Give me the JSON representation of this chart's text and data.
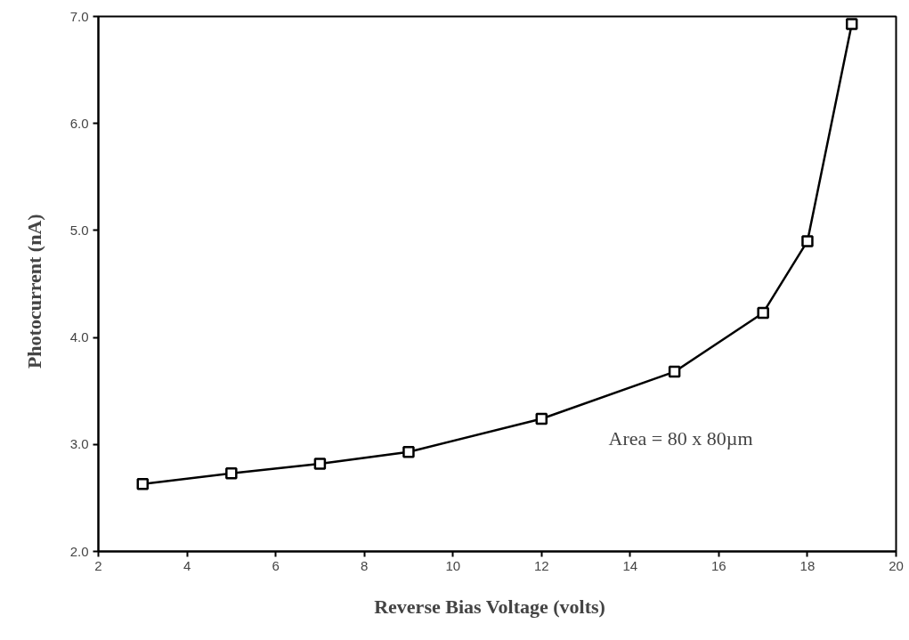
{
  "chart_data": {
    "type": "line",
    "xlabel": "Reverse Bias Voltage    (volts)",
    "ylabel": "Photocurrent    (nA)",
    "x": [
      3,
      5,
      7,
      9,
      12,
      15,
      17,
      18,
      19
    ],
    "series": [
      {
        "color": "#000000",
        "values": [
          2.63,
          2.73,
          2.82,
          2.93,
          3.24,
          3.68,
          4.23,
          4.9,
          6.93
        ]
      }
    ],
    "xlim": [
      2,
      20
    ],
    "ylim": [
      2.0,
      7.0
    ],
    "xticks": [
      2,
      4,
      6,
      8,
      10,
      12,
      14,
      16,
      18,
      20
    ],
    "yticks": [
      {
        "value": 2,
        "label": "2.0"
      },
      {
        "value": 3,
        "label": "3.0"
      },
      {
        "value": 4,
        "label": "4.0"
      },
      {
        "value": 5,
        "label": "5.0"
      },
      {
        "value": 6,
        "label": "6.0"
      },
      {
        "value": 7,
        "label": "7.0"
      }
    ],
    "annotations": [
      "Area = 80 x 80µm"
    ],
    "marker": "square",
    "line_style": "solid",
    "grid": false
  }
}
